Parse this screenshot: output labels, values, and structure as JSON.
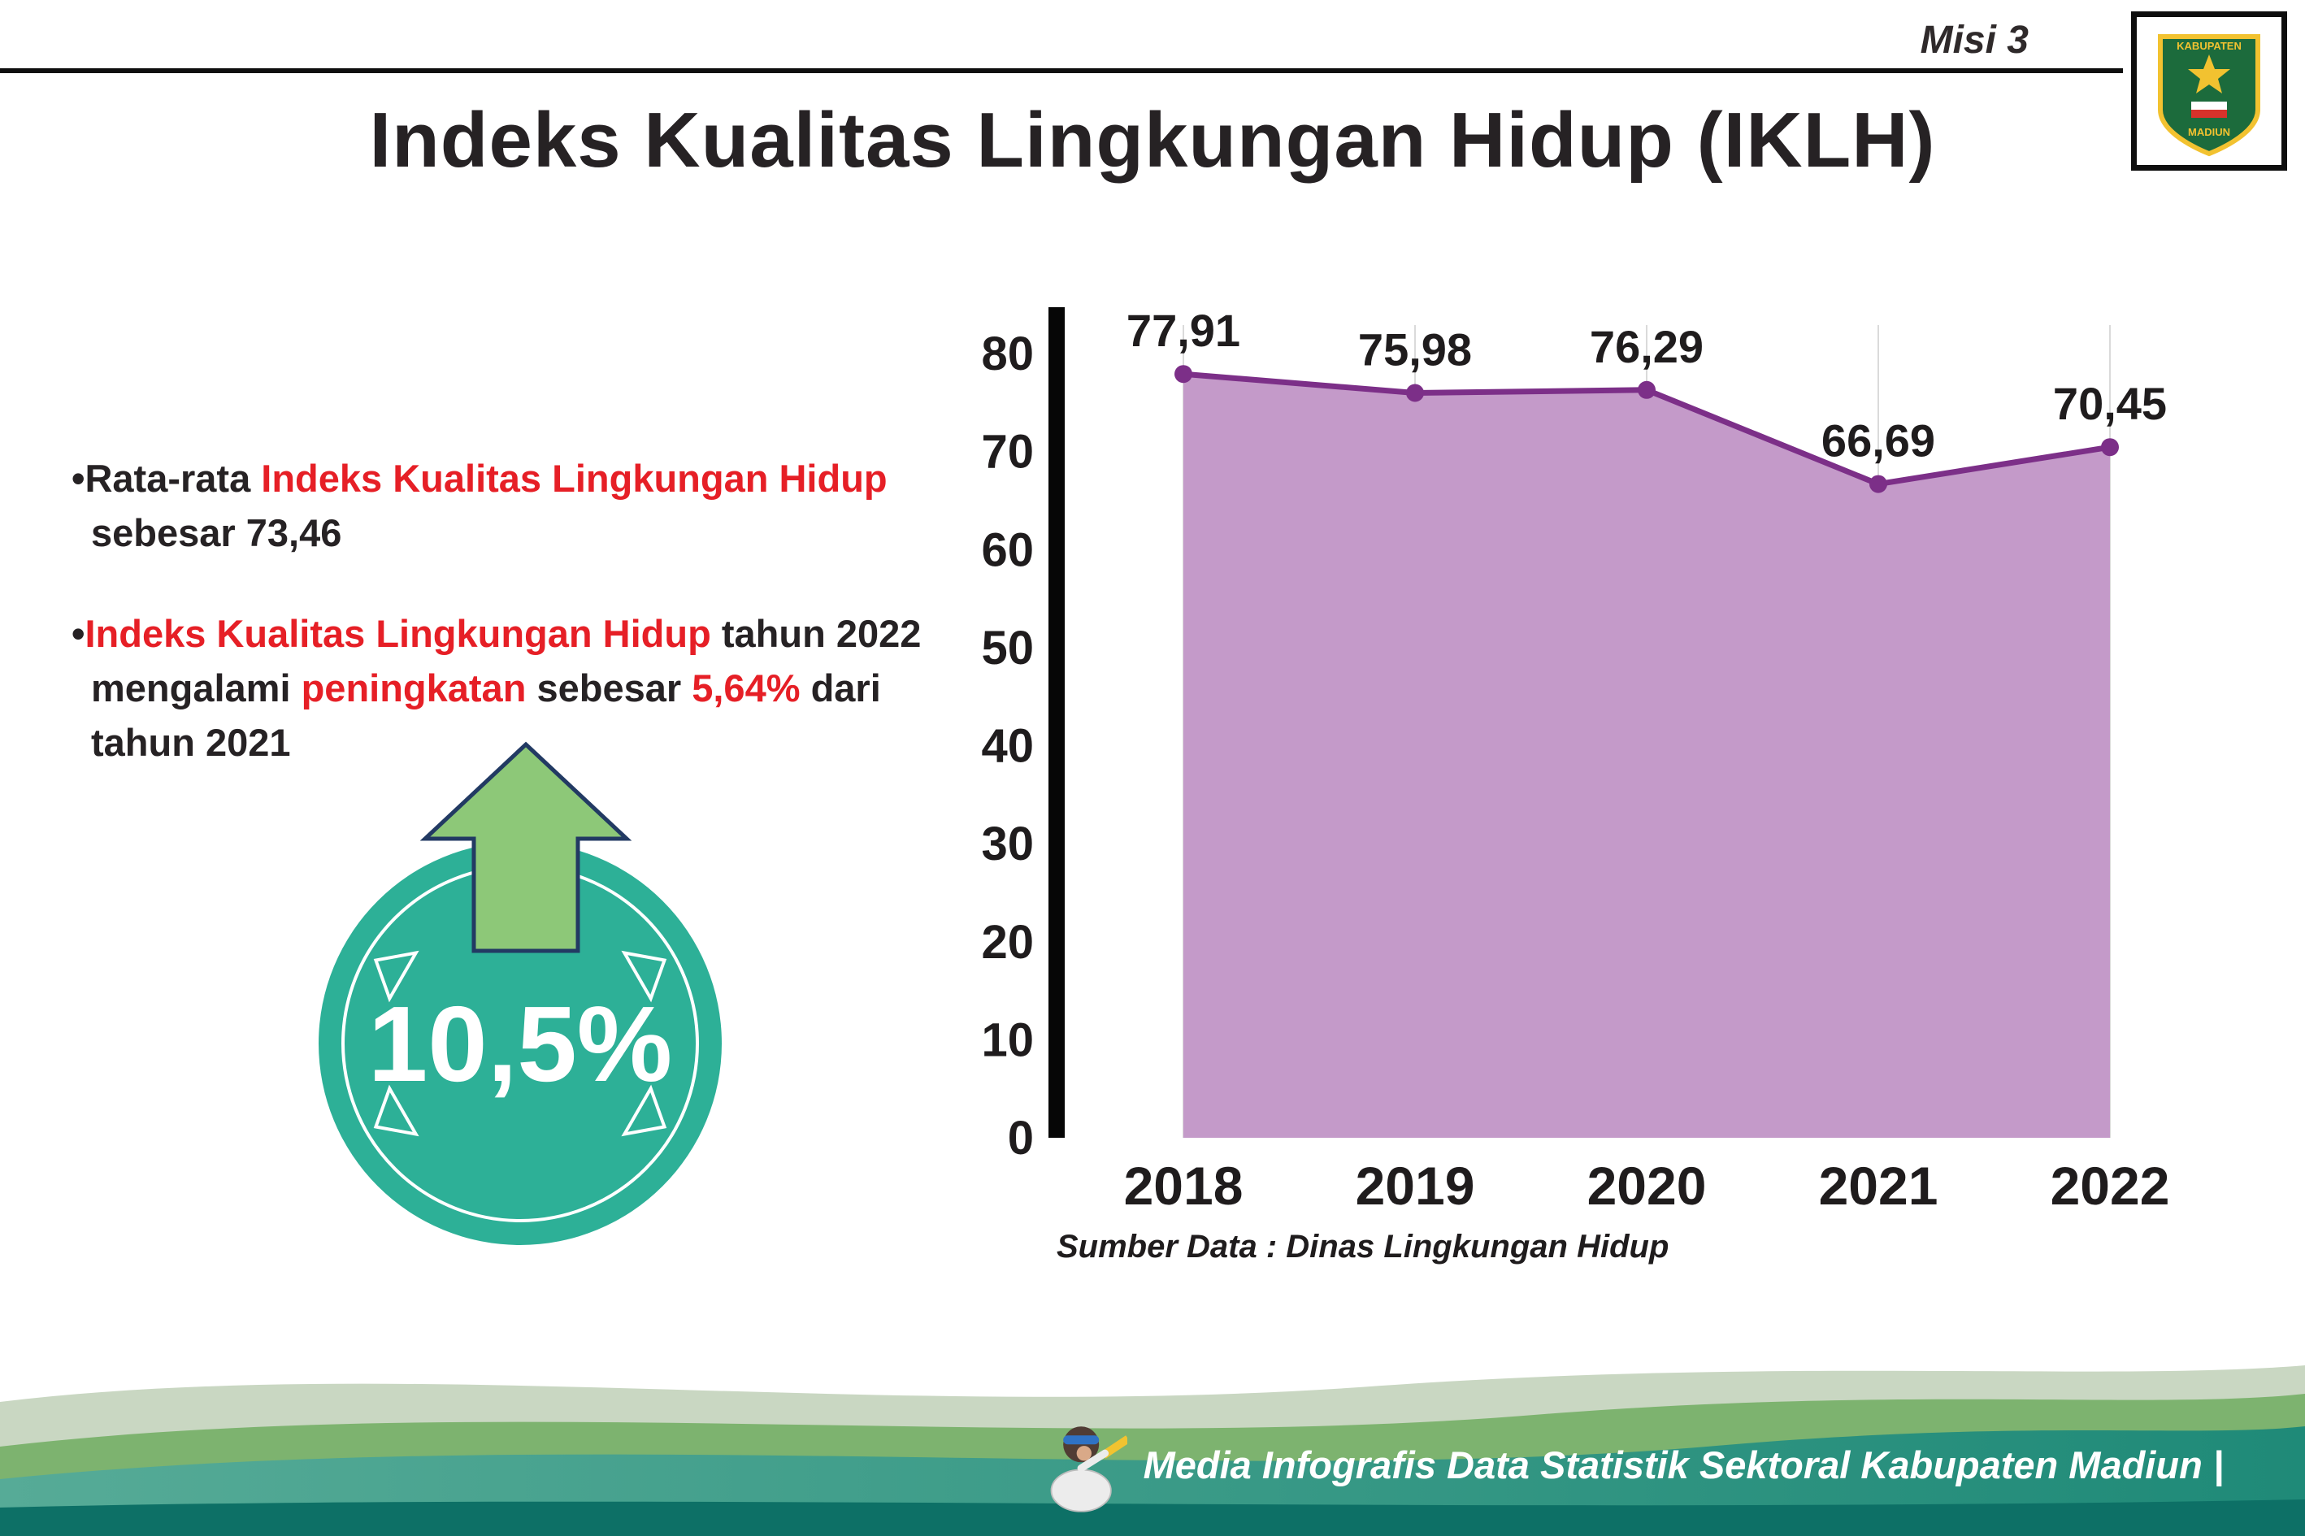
{
  "header": {
    "misi_label": "Misi 3",
    "title": "Indeks Kualitas Lingkungan Hidup (IKLH)",
    "logo_text_top": "KABUPATEN",
    "logo_text_bottom": "MADIUN"
  },
  "left_panel": {
    "bullet_char": "•",
    "bullet1": {
      "prefix": "Rata-rata ",
      "highlight": "Indeks Kualitas Lingkungan Hidup",
      "suffix": " sebesar 73,46"
    },
    "bullet2": {
      "highlight1": "Indeks Kualitas Lingkungan Hidup",
      "mid1": " tahun 2022 mengalami ",
      "highlight2": "peningkatan",
      "mid2": " sebesar ",
      "highlight3": "5,64%",
      "suffix": " dari tahun 2021"
    },
    "badge": {
      "value": "10,5%",
      "circle_color": "#2db097",
      "arrow_color": "#8dc878",
      "arrow_outline": "#223a63"
    }
  },
  "chart_data": {
    "type": "area",
    "title": "Indeks Kualitas Lingkungan Hidup (IKLH)",
    "categories": [
      "2018",
      "2019",
      "2020",
      "2021",
      "2022"
    ],
    "values": [
      77.91,
      75.98,
      76.29,
      66.69,
      70.45
    ],
    "value_labels": [
      "77,91",
      "75,98",
      "76,29",
      "66,69",
      "70,45"
    ],
    "xlabel": "",
    "ylabel": "",
    "ylim": [
      0,
      80
    ],
    "yticks": [
      0,
      10,
      20,
      30,
      40,
      50,
      60,
      70,
      80
    ],
    "grid": "vertical-light",
    "legend": "none",
    "source": "Sumber Data : Dinas Lingkungan Hidup",
    "colors": {
      "area": "#c49ac9",
      "line": "#7c2f88",
      "point": "#7c2f88"
    }
  },
  "footer": {
    "credit": "Media Infografis Data Statistik Sektoral Kabupaten Madiun |",
    "colors": {
      "sage": "#c9d7c2",
      "green": "#7db36f",
      "teal": "#2f9d8a",
      "dark_teal": "#0d7066"
    }
  },
  "accent_red": "#e61f26"
}
